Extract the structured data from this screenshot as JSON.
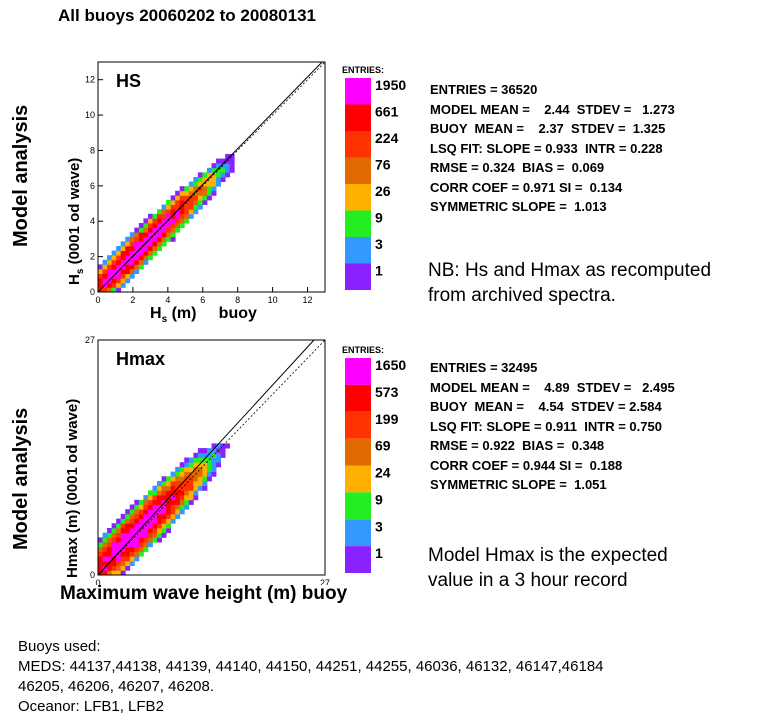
{
  "header": {
    "title": "All buoys 20060202 to 20080131"
  },
  "hs_panel": {
    "panel_label": "HS",
    "outer_ylabel": "Model analysis",
    "inner_ylabel_main": "H",
    "inner_ylabel_sub": "s",
    "inner_ylabel_rest": " (0001 od wave)",
    "xlabel_main": "H",
    "xlabel_sub": "s",
    "xlabel_rest": " (m)     buoy",
    "stats": [
      "ENTRIES = 36520",
      "MODEL MEAN =    2.44  STDEV =   1.273",
      "BUOY  MEAN =    2.37  STDEV =  1.325",
      "LSQ FIT: SLOPE = 0.933  INTR = 0.228",
      "RMSE = 0.324  BIAS =  0.069",
      "CORR COEF = 0.971 SI =  0.134",
      "SYMMETRIC SLOPE =  1.013"
    ],
    "note": [
      "NB: Hs and Hmax as recomputed",
      "from archived spectra."
    ]
  },
  "hmax_panel": {
    "panel_label": "Hmax",
    "outer_ylabel": "Model analysis",
    "inner_ylabel": "Hmax (m) (0001 od wave)",
    "xlabel": "Maximum wave height (m) buoy",
    "stats": [
      "ENTRIES = 32495",
      "MODEL MEAN =    4.89  STDEV =   2.495",
      "BUOY  MEAN =    4.54  STDEV = 2.584",
      "LSQ FIT: SLOPE = 0.911  INTR = 0.750",
      "RMSE = 0.922  BIAS =  0.348",
      "CORR COEF = 0.944 SI =  0.188",
      "SYMMETRIC SLOPE =  1.051"
    ],
    "note": [
      "Model Hmax is the expected",
      "value in a 3 hour record"
    ]
  },
  "buoys": {
    "heading": "Buoys used:",
    "meds_line1": "MEDS: 44137,44138, 44139, 44140, 44150, 44251, 44255, 46036, 46132, 46147,46184",
    "meds_line2": "46205, 46206, 46207, 46208.",
    "oceanor": "Oceanor: LFB1, LFB2"
  },
  "chart_data": [
    {
      "type": "heatmap",
      "name": "HS",
      "xlim": [
        0,
        13
      ],
      "ylim": [
        0,
        13
      ],
      "x_ticks": [
        0,
        2,
        4,
        6,
        8,
        10,
        12
      ],
      "y_ticks": [
        0,
        2,
        4,
        6,
        8,
        10,
        12
      ],
      "lsq_fit": {
        "slope": 0.933,
        "intercept": 0.228
      },
      "symmetric_slope": 1.013,
      "legend": {
        "title": "ENTRIES:",
        "labels": [
          "1950",
          "661",
          "224",
          "76",
          "26",
          "9",
          "3",
          "1"
        ],
        "colors": [
          "#ff00ff",
          "#ff0000",
          "#ff3300",
          "#e06a00",
          "#ffb000",
          "#22ee22",
          "#3399ff",
          "#8822ff"
        ]
      },
      "density": {
        "model_mean": 2.44,
        "model_stdev": 1.273,
        "buoy_mean": 2.37,
        "buoy_stdev": 1.325,
        "corr": 0.971,
        "max_entries": 1950
      }
    },
    {
      "type": "heatmap",
      "name": "Hmax",
      "xlim": [
        0,
        27
      ],
      "ylim": [
        0,
        27
      ],
      "x_ticks": [
        0,
        27
      ],
      "y_ticks": [
        0,
        27
      ],
      "lsq_fit": {
        "slope": 0.911,
        "intercept": 0.75
      },
      "symmetric_slope": 1.051,
      "legend": {
        "title": "ENTRIES:",
        "labels": [
          "1650",
          "573",
          "199",
          "69",
          "24",
          "9",
          "3",
          "1"
        ],
        "colors": [
          "#ff00ff",
          "#ff0000",
          "#ff3300",
          "#e06a00",
          "#ffb000",
          "#22ee22",
          "#3399ff",
          "#8822ff"
        ]
      },
      "density": {
        "model_mean": 4.89,
        "model_stdev": 2.495,
        "buoy_mean": 4.54,
        "buoy_stdev": 2.584,
        "corr": 0.944,
        "max_entries": 1650
      }
    }
  ]
}
